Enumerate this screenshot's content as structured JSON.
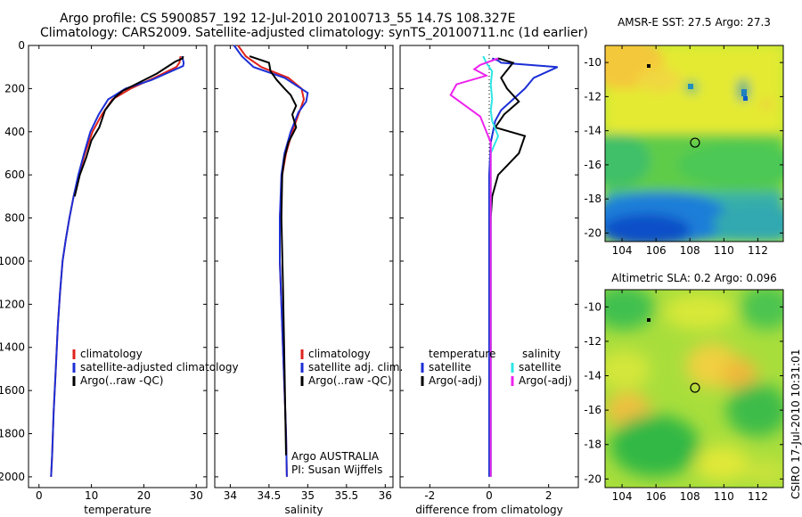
{
  "header": {
    "line1": "Argo profile: CS 5900857_192 12-Jul-2010 20100713_55 14.7S 108.327E",
    "line2": "Climatology: CARS2009. Satellite-adjusted climatology: synTS_20100711.nc (1d earlier)"
  },
  "credit": "CSIRO 17-Jul-2010 10:31:01",
  "colors": {
    "climatology": "#e0231c",
    "satellite": "#1c2fd6",
    "argo": "#000000",
    "sat_salinity": "#2ee6e6",
    "argo_salinity_adj": "#ee22ee"
  },
  "chart_data": [
    {
      "type": "line",
      "title": "",
      "xlabel": "temperature",
      "ylabel": "",
      "xlim": [
        -2,
        32
      ],
      "ylim": [
        2050,
        0
      ],
      "xticks": [
        0,
        10,
        20,
        30
      ],
      "yticks": [
        0,
        200,
        400,
        600,
        800,
        1000,
        1200,
        1400,
        1600,
        1800,
        2000
      ],
      "legend": [
        "climatology",
        "satellite-adjusted climatology",
        "Argo(..raw -QC)"
      ],
      "series": [
        {
          "name": "climatology",
          "color": "#e0231c",
          "x": [
            27.0,
            26.8,
            26.2,
            22.0,
            17.5,
            14.0,
            12.0,
            10.2,
            8.8,
            7.6,
            6.6,
            5.8,
            5.1,
            4.5,
            4.0,
            3.6,
            3.2,
            2.8,
            2.5,
            2.3
          ],
          "y": [
            50,
            80,
            100,
            150,
            200,
            250,
            320,
            400,
            500,
            600,
            700,
            800,
            900,
            1000,
            1150,
            1300,
            1500,
            1700,
            1900,
            2000
          ]
        },
        {
          "name": "satellite-adjusted climatology",
          "color": "#1c2fd6",
          "x": [
            27.3,
            27.6,
            27.5,
            21.5,
            16.5,
            13.2,
            11.4,
            9.8,
            8.6,
            7.5,
            6.6,
            5.8,
            5.1,
            4.5,
            4.0,
            3.6,
            3.2,
            2.8,
            2.5,
            2.3
          ],
          "y": [
            50,
            80,
            95,
            160,
            200,
            250,
            320,
            400,
            500,
            600,
            700,
            800,
            900,
            1000,
            1150,
            1300,
            1500,
            1700,
            1900,
            2000
          ]
        },
        {
          "name": "Argo(..raw -QC)",
          "color": "#000000",
          "x": [
            27.5,
            27.4,
            26.0,
            22.5,
            16.0,
            14.5,
            12.6,
            11.5,
            10.0,
            9.0,
            7.8,
            6.8
          ],
          "y": [
            50,
            60,
            75,
            130,
            210,
            240,
            300,
            380,
            440,
            520,
            600,
            700
          ]
        }
      ]
    },
    {
      "type": "line",
      "xlabel": "salinity",
      "xlim": [
        33.8,
        36.1
      ],
      "ylim": [
        2050,
        0
      ],
      "xticks": [
        34,
        34.5,
        35,
        35.5,
        36
      ],
      "legend": [
        "climatology",
        "satellite adj. clim.",
        "Argo(..raw -QC)"
      ],
      "annotation": [
        "Argo AUSTRALIA",
        "PI: Susan Wijffels"
      ],
      "series": [
        {
          "name": "climatology",
          "color": "#e0231c",
          "x": [
            34.1,
            34.2,
            34.4,
            34.75,
            34.92,
            34.95,
            34.9,
            34.8,
            34.72,
            34.67,
            34.64,
            34.64,
            34.66,
            34.68,
            34.7,
            34.72,
            34.73
          ],
          "y": [
            0,
            50,
            100,
            150,
            200,
            250,
            300,
            400,
            500,
            600,
            800,
            1000,
            1200,
            1400,
            1600,
            1800,
            2000
          ]
        },
        {
          "name": "satellite adj. clim.",
          "color": "#1c2fd6",
          "x": [
            34.05,
            34.15,
            34.3,
            34.7,
            35.0,
            34.98,
            34.88,
            34.78,
            34.7,
            34.66,
            34.64,
            34.64,
            34.66,
            34.68,
            34.7,
            34.72,
            34.73
          ],
          "y": [
            0,
            50,
            100,
            150,
            220,
            260,
            310,
            400,
            500,
            600,
            800,
            1000,
            1200,
            1400,
            1600,
            1800,
            2000
          ]
        },
        {
          "name": "Argo(..raw -QC)",
          "color": "#000000",
          "x": [
            34.25,
            34.5,
            34.52,
            34.6,
            34.7,
            34.78,
            34.85,
            34.8,
            34.85,
            34.75,
            34.7,
            34.67,
            34.66,
            34.68,
            34.7,
            34.72
          ],
          "y": [
            50,
            80,
            120,
            160,
            200,
            230,
            280,
            320,
            380,
            450,
            520,
            600,
            800,
            1100,
            1500,
            1900
          ]
        }
      ]
    },
    {
      "type": "line",
      "xlabel": "difference from climatology",
      "xlim": [
        -3,
        3
      ],
      "ylim": [
        2050,
        0
      ],
      "xticks": [
        -2,
        0,
        2
      ],
      "legend": [
        "temperature",
        "satellite",
        "Argo(-adj)",
        "salinity",
        "satellite",
        "Argo(-adj)"
      ],
      "series": [
        {
          "name": "temperature satellite",
          "color": "#1c2fd6",
          "x": [
            0.1,
            0.3,
            0.4,
            2.3,
            1.5,
            1.2,
            0.8,
            0.4,
            0.2,
            0.05,
            0,
            0,
            0
          ],
          "y": [
            60,
            70,
            80,
            100,
            150,
            200,
            250,
            300,
            350,
            450,
            600,
            1200,
            2000
          ]
        },
        {
          "name": "temperature Argo(-adj)",
          "color": "#000000",
          "x": [
            0.3,
            0.8,
            0.4,
            0.6,
            1.0,
            0.5,
            0.2,
            1.2,
            1.0,
            0.3,
            0.1,
            0.05,
            0.05
          ],
          "y": [
            60,
            80,
            150,
            200,
            260,
            320,
            380,
            420,
            500,
            600,
            700,
            800,
            2000
          ]
        },
        {
          "name": "salinity satellite",
          "color": "#2ee6e6",
          "x": [
            -0.2,
            -0.1,
            0.1,
            0.05,
            0.1,
            0.05,
            0.1,
            0.3,
            0.05,
            0.05,
            0.05
          ],
          "y": [
            50,
            80,
            120,
            180,
            250,
            300,
            350,
            420,
            500,
            1000,
            2000
          ]
        },
        {
          "name": "salinity Argo(-adj)",
          "color": "#ee22ee",
          "x": [
            0.3,
            -0.3,
            -0.5,
            -0.1,
            -1.1,
            -1.3,
            -0.3,
            0.05,
            0.05,
            0.05
          ],
          "y": [
            60,
            90,
            110,
            140,
            180,
            230,
            330,
            450,
            600,
            2000
          ]
        }
      ]
    },
    {
      "type": "heatmap",
      "title": "AMSR-E SST: 27.5 Argo: 27.3",
      "xlim": [
        103,
        113.5
      ],
      "ylim": [
        -20.5,
        -9
      ],
      "xticks": [
        104,
        106,
        108,
        110,
        112
      ],
      "yticks": [
        -10,
        -12,
        -14,
        -16,
        -18,
        -20
      ],
      "marker": {
        "x": 108.3,
        "y": -14.7
      }
    },
    {
      "type": "heatmap",
      "title": "Altimetric SLA: 0.2 Argo: 0.096",
      "xlim": [
        103,
        113.5
      ],
      "ylim": [
        -20.5,
        -9
      ],
      "xticks": [
        104,
        106,
        108,
        110,
        112
      ],
      "yticks": [
        -10,
        -12,
        -14,
        -16,
        -18,
        -20
      ],
      "marker": {
        "x": 108.3,
        "y": -14.7
      }
    }
  ]
}
